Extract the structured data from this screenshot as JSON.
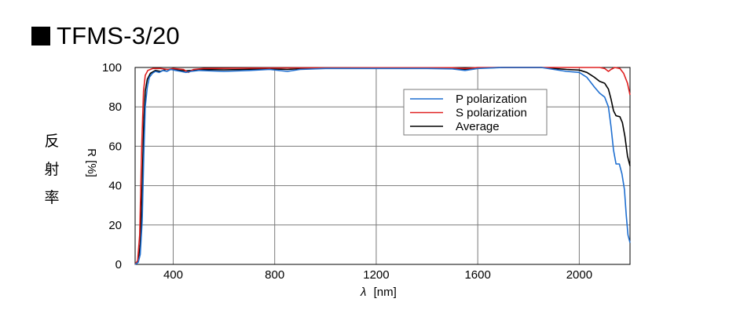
{
  "title": "TFMS-3/20",
  "side_label": [
    "反",
    "射",
    "率"
  ],
  "chart_data": {
    "type": "line",
    "xlabel_symbol": "λ",
    "xlabel_unit": "[nm]",
    "ylabel": "R [%]",
    "xlim": [
      250,
      2200
    ],
    "ylim": [
      0,
      100
    ],
    "xticks": [
      400,
      800,
      1200,
      1600,
      2000
    ],
    "yticks": [
      0,
      20,
      40,
      60,
      80,
      100
    ],
    "grid": true,
    "legend_position": "top-right",
    "series": [
      {
        "name": "P polarization",
        "color": "#1f6fd0",
        "points": [
          [
            250,
            0
          ],
          [
            262,
            1
          ],
          [
            270,
            5
          ],
          [
            278,
            22
          ],
          [
            284,
            55
          ],
          [
            290,
            80
          ],
          [
            298,
            90
          ],
          [
            306,
            95
          ],
          [
            318,
            97
          ],
          [
            330,
            98
          ],
          [
            345,
            97.5
          ],
          [
            360,
            98.5
          ],
          [
            375,
            98
          ],
          [
            390,
            99
          ],
          [
            410,
            98.5
          ],
          [
            430,
            98
          ],
          [
            450,
            97.5
          ],
          [
            470,
            98
          ],
          [
            500,
            98.5
          ],
          [
            600,
            98
          ],
          [
            700,
            98.5
          ],
          [
            780,
            99
          ],
          [
            850,
            98
          ],
          [
            900,
            99
          ],
          [
            1000,
            99.5
          ],
          [
            1200,
            99.5
          ],
          [
            1400,
            99.5
          ],
          [
            1500,
            99.3
          ],
          [
            1550,
            98.5
          ],
          [
            1600,
            99.5
          ],
          [
            1700,
            100
          ],
          [
            1800,
            100
          ],
          [
            1850,
            100
          ],
          [
            1900,
            99
          ],
          [
            1950,
            98
          ],
          [
            2000,
            97.5
          ],
          [
            2030,
            95
          ],
          [
            2060,
            90
          ],
          [
            2080,
            87
          ],
          [
            2100,
            85
          ],
          [
            2115,
            80
          ],
          [
            2125,
            70
          ],
          [
            2135,
            58
          ],
          [
            2145,
            51
          ],
          [
            2158,
            51
          ],
          [
            2168,
            46
          ],
          [
            2178,
            38
          ],
          [
            2185,
            25
          ],
          [
            2192,
            15
          ],
          [
            2200,
            11
          ]
        ]
      },
      {
        "name": "S polarization",
        "color": "#e02020",
        "points": [
          [
            250,
            0
          ],
          [
            260,
            2
          ],
          [
            268,
            15
          ],
          [
            276,
            60
          ],
          [
            283,
            88
          ],
          [
            290,
            96
          ],
          [
            300,
            98.5
          ],
          [
            320,
            99.5
          ],
          [
            350,
            99.5
          ],
          [
            380,
            99
          ],
          [
            400,
            99.5
          ],
          [
            440,
            99
          ],
          [
            460,
            97.5
          ],
          [
            480,
            99
          ],
          [
            520,
            99.5
          ],
          [
            700,
            99.7
          ],
          [
            900,
            99.8
          ],
          [
            1200,
            99.9
          ],
          [
            1500,
            99.9
          ],
          [
            1550,
            99.5
          ],
          [
            1600,
            100
          ],
          [
            1800,
            100
          ],
          [
            1900,
            100
          ],
          [
            2000,
            100
          ],
          [
            2080,
            100
          ],
          [
            2100,
            99.5
          ],
          [
            2115,
            98
          ],
          [
            2125,
            99
          ],
          [
            2140,
            100
          ],
          [
            2160,
            99.5
          ],
          [
            2175,
            97
          ],
          [
            2190,
            92
          ],
          [
            2200,
            86
          ]
        ]
      },
      {
        "name": "Average",
        "color": "#000000",
        "points": [
          [
            250,
            0
          ],
          [
            262,
            2
          ],
          [
            270,
            10
          ],
          [
            278,
            40
          ],
          [
            284,
            72
          ],
          [
            290,
            88
          ],
          [
            298,
            94
          ],
          [
            310,
            97
          ],
          [
            330,
            98.5
          ],
          [
            350,
            98
          ],
          [
            370,
            99
          ],
          [
            400,
            99
          ],
          [
            430,
            98.5
          ],
          [
            450,
            98.3
          ],
          [
            470,
            98.5
          ],
          [
            500,
            99
          ],
          [
            600,
            98.8
          ],
          [
            700,
            99.1
          ],
          [
            800,
            99.2
          ],
          [
            850,
            99
          ],
          [
            900,
            99.4
          ],
          [
            1000,
            99.7
          ],
          [
            1200,
            99.7
          ],
          [
            1400,
            99.7
          ],
          [
            1500,
            99.6
          ],
          [
            1550,
            99
          ],
          [
            1600,
            99.7
          ],
          [
            1700,
            100
          ],
          [
            1800,
            100
          ],
          [
            1850,
            100
          ],
          [
            1900,
            99.5
          ],
          [
            1950,
            99
          ],
          [
            2000,
            98.7
          ],
          [
            2030,
            97.5
          ],
          [
            2060,
            95
          ],
          [
            2080,
            93
          ],
          [
            2100,
            92
          ],
          [
            2115,
            89
          ],
          [
            2125,
            84
          ],
          [
            2135,
            78
          ],
          [
            2145,
            75.5
          ],
          [
            2160,
            75
          ],
          [
            2170,
            72
          ],
          [
            2180,
            65
          ],
          [
            2190,
            55
          ],
          [
            2200,
            50
          ]
        ]
      }
    ]
  }
}
